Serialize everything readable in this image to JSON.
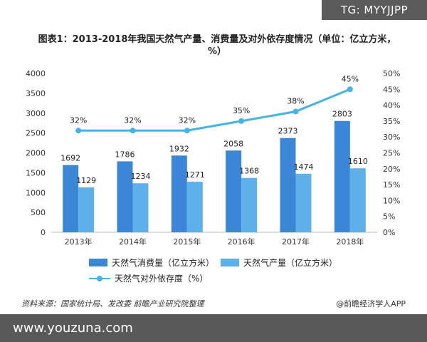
{
  "watermark_tag": "TG: MYYJJPP",
  "footer_watermark": "www.youzuna.com",
  "source_text": "资料来源：国家统计局、发改委 前瞻产业研究院整理",
  "credit_text": "@前瞻经济学人APP",
  "chart_data": {
    "type": "bar",
    "title": "图表1：2013-2018年我国天然气产量、消费量及对外依存度情况（单位：亿立方米，%）",
    "categories": [
      "2013年",
      "2014年",
      "2015年",
      "2016年",
      "2017年",
      "2018年"
    ],
    "series": [
      {
        "name": "天然气消费量（亿立方米）",
        "type": "bar",
        "axis": "left",
        "color": "#3c86d8",
        "values": [
          1692,
          1786,
          1932,
          2058,
          2373,
          2803
        ]
      },
      {
        "name": "天然气产量（亿立方米）",
        "type": "bar",
        "axis": "left",
        "color": "#5db0ea",
        "values": [
          1129,
          1234,
          1271,
          1368,
          1474,
          1610
        ]
      },
      {
        "name": "天然气对外依存度（%）",
        "type": "line",
        "axis": "right",
        "color": "#45b3e6",
        "values": [
          32,
          32,
          32,
          35,
          38,
          45
        ]
      }
    ],
    "yleft_ticks": [
      "0",
      "500",
      "1000",
      "1500",
      "2000",
      "2500",
      "3000",
      "3500",
      "4000"
    ],
    "yright_ticks": [
      "0%",
      "5%",
      "10%",
      "15%",
      "20%",
      "25%",
      "30%",
      "35%",
      "40%",
      "45%",
      "50%"
    ],
    "ylim_left": [
      0,
      4000
    ],
    "ylim_right": [
      0,
      50
    ],
    "line_label_suffix": "%",
    "legend_position": "bottom",
    "grid": false
  }
}
